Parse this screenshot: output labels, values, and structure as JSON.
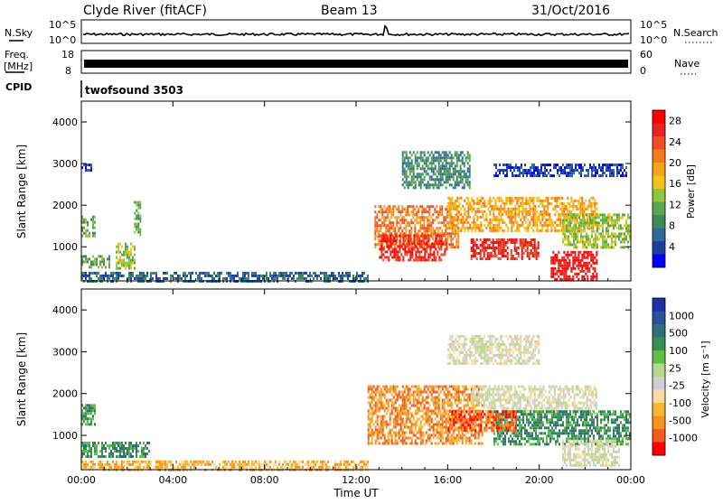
{
  "header": {
    "station": "Clyde River (fitACF)",
    "beam": "Beam 13",
    "date": "31/Oct/2016"
  },
  "noise_panel": {
    "left_label": "N.Sky",
    "right_label": "N.Search",
    "ticks": [
      "10^5",
      "10^0"
    ]
  },
  "freq_panel": {
    "left_label_top": "Freq.",
    "left_label_bottom": "[MHz]",
    "left_ticks": [
      "18",
      "8"
    ],
    "right_label": "Nave",
    "right_ticks": [
      "60",
      "0"
    ]
  },
  "cpid_panel": {
    "label": "CPID",
    "program": "twofsound 3503"
  },
  "colors": {
    "power": [
      "#0000ff",
      "#1e3fa0",
      "#2e6a9a",
      "#3c8c5a",
      "#5aa84e",
      "#8ec63f",
      "#f0c419",
      "#f7a21b",
      "#f47a1f",
      "#f04e23",
      "#e8231f",
      "#ff0000"
    ],
    "velocity": [
      "#ff0000",
      "#f25a1e",
      "#f7941d",
      "#f7b731",
      "#fcd9a0",
      "#cfcfcf",
      "#b6d98a",
      "#5fbf4a",
      "#3a8f55",
      "#2f6f7a",
      "#2b4f9a",
      "#1f2fa8"
    ]
  },
  "chart_data": [
    {
      "type": "heatmap",
      "quantity": "Power",
      "ylabel": "Slant Range [km]",
      "xlabel": "",
      "ylim": [
        180,
        4500
      ],
      "yticks": [
        1000,
        2000,
        3000,
        4000
      ],
      "xlim": [
        0,
        24
      ],
      "xticks": [
        "00:00",
        "04:00",
        "08:00",
        "12:00",
        "16:00",
        "20:00",
        "00:00"
      ],
      "colorbar": {
        "label": "Power [dB]",
        "ticks": [
          "4",
          "8",
          "12",
          "16",
          "20",
          "24",
          "28"
        ],
        "range": [
          0,
          30
        ]
      },
      "regions": [
        {
          "t0": 0.0,
          "t1": 0.6,
          "r0": 1250,
          "r1": 1750,
          "level": 10
        },
        {
          "t0": 0.0,
          "t1": 0.4,
          "r0": 2850,
          "r1": 3000,
          "level": 4
        },
        {
          "t0": 0.0,
          "t1": 1.2,
          "r0": 500,
          "r1": 800,
          "level": 12
        },
        {
          "t0": 1.5,
          "t1": 2.3,
          "r0": 500,
          "r1": 1100,
          "level": 14
        },
        {
          "t0": 2.3,
          "t1": 2.6,
          "r0": 1300,
          "r1": 2100,
          "level": 12
        },
        {
          "t0": 0.0,
          "t1": 12.5,
          "r0": 200,
          "r1": 400,
          "level": 6
        },
        {
          "t0": 12.8,
          "t1": 16.5,
          "r0": 1000,
          "r1": 2000,
          "level": 22
        },
        {
          "t0": 13.0,
          "t1": 16.0,
          "r0": 700,
          "r1": 1300,
          "level": 26
        },
        {
          "t0": 14.0,
          "t1": 17.0,
          "r0": 2400,
          "r1": 3300,
          "level": 8
        },
        {
          "t0": 16.0,
          "t1": 22.5,
          "r0": 1400,
          "r1": 2200,
          "level": 18
        },
        {
          "t0": 17.0,
          "t1": 20.0,
          "r0": 700,
          "r1": 1200,
          "level": 27
        },
        {
          "t0": 20.5,
          "t1": 22.5,
          "r0": 200,
          "r1": 900,
          "level": 29
        },
        {
          "t0": 18.0,
          "t1": 23.8,
          "r0": 2700,
          "r1": 3000,
          "level": 4
        },
        {
          "t0": 21.0,
          "t1": 24.0,
          "r0": 1000,
          "r1": 1800,
          "level": 14
        }
      ]
    },
    {
      "type": "heatmap",
      "quantity": "Velocity",
      "ylabel": "Slant Range [km]",
      "xlabel": "Time UT",
      "ylim": [
        180,
        4500
      ],
      "yticks": [
        1000,
        2000,
        3000,
        4000
      ],
      "xlim": [
        0,
        24
      ],
      "xticks": [
        "00:00",
        "04:00",
        "08:00",
        "12:00",
        "16:00",
        "20:00",
        "00:00"
      ],
      "colorbar": {
        "label": "Velocity [m s⁻¹]",
        "ticks": [
          "1000",
          "500",
          "100",
          "25",
          "-25",
          "-100",
          "-500",
          "-1000"
        ]
      },
      "regions": [
        {
          "t0": 0.0,
          "t1": 0.6,
          "r0": 1250,
          "r1": 1750,
          "level": 8
        },
        {
          "t0": 0.0,
          "t1": 3.0,
          "r0": 500,
          "r1": 850,
          "level": 8
        },
        {
          "t0": 0.0,
          "t1": 12.5,
          "r0": 200,
          "r1": 400,
          "level": 3
        },
        {
          "t0": 12.5,
          "t1": 17.5,
          "r0": 800,
          "r1": 2200,
          "level": 2
        },
        {
          "t0": 16.0,
          "t1": 20.0,
          "r0": 2700,
          "r1": 3400,
          "level": 5
        },
        {
          "t0": 17.0,
          "t1": 22.5,
          "r0": 1500,
          "r1": 2200,
          "level": 5
        },
        {
          "t0": 18.0,
          "t1": 24.0,
          "r0": 800,
          "r1": 1600,
          "level": 8
        },
        {
          "t0": 21.0,
          "t1": 23.5,
          "r0": 300,
          "r1": 900,
          "level": 5
        },
        {
          "t0": 16.0,
          "t1": 19.0,
          "r0": 1100,
          "r1": 1600,
          "level": 1
        }
      ]
    }
  ]
}
